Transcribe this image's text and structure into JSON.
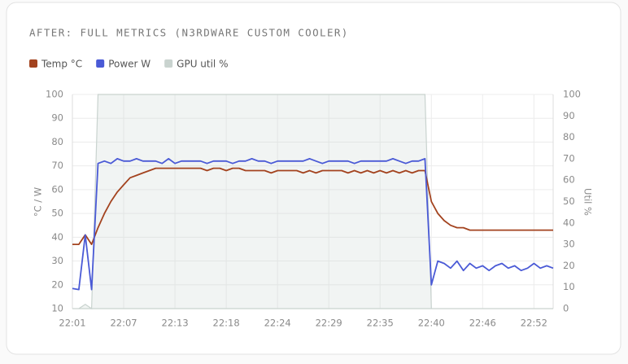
{
  "chart_data": {
    "type": "line",
    "title": "AFTER: FULL METRICS (N3RDWARE CUSTOM COOLER)",
    "y_label": "°C / W",
    "y2_label": "Util %",
    "categories": [
      "22:01",
      null,
      null,
      null,
      null,
      null,
      null,
      null,
      "22:07",
      null,
      null,
      null,
      null,
      null,
      null,
      null,
      "22:13",
      null,
      null,
      null,
      null,
      null,
      null,
      null,
      "22:18",
      null,
      null,
      null,
      null,
      null,
      null,
      null,
      "22:24",
      null,
      null,
      null,
      null,
      null,
      null,
      null,
      "22:29",
      null,
      null,
      null,
      null,
      null,
      null,
      null,
      "22:35",
      null,
      null,
      null,
      null,
      null,
      null,
      null,
      "22:40",
      null,
      null,
      null,
      null,
      null,
      null,
      null,
      "22:46",
      null,
      null,
      null,
      null,
      null,
      null,
      null,
      "22:52",
      null,
      null,
      null
    ],
    "series": [
      {
        "name": "Temp °C",
        "color": "#a3431f",
        "values": [
          37,
          37,
          41,
          37,
          44,
          50,
          55,
          59,
          62,
          65,
          66,
          67,
          68,
          69,
          69,
          69,
          69,
          69,
          69,
          69,
          69,
          68,
          69,
          69,
          68,
          69,
          69,
          68,
          68,
          68,
          68,
          67,
          68,
          68,
          68,
          68,
          67,
          68,
          67,
          68,
          68,
          68,
          68,
          67,
          68,
          67,
          68,
          67,
          68,
          67,
          68,
          67,
          68,
          67,
          68,
          68,
          55,
          50,
          47,
          45,
          44,
          44,
          43,
          43,
          43,
          43,
          43,
          43,
          43,
          43,
          43,
          43,
          43,
          43,
          43,
          43
        ]
      },
      {
        "name": "Power W",
        "color": "#4a5ad6",
        "values": [
          18.5,
          18,
          41,
          18,
          71,
          72,
          71,
          73,
          72,
          72,
          73,
          72,
          72,
          72,
          71,
          73,
          71,
          72,
          72,
          72,
          72,
          71,
          72,
          72,
          72,
          71,
          72,
          72,
          73,
          72,
          72,
          71,
          72,
          72,
          72,
          72,
          72,
          73,
          72,
          71,
          72,
          72,
          72,
          72,
          71,
          72,
          72,
          72,
          72,
          72,
          73,
          72,
          71,
          72,
          72,
          73,
          20,
          30,
          29,
          27,
          30,
          26,
          29,
          27,
          28,
          26,
          28,
          29,
          27,
          28,
          26,
          27,
          29,
          27,
          28,
          27
        ]
      },
      {
        "name": "GPU util %",
        "color": "#c9d3cf",
        "axis": "y2",
        "fill": true,
        "values": [
          0,
          0,
          2,
          0,
          100,
          100,
          100,
          100,
          100,
          100,
          100,
          100,
          100,
          100,
          100,
          100,
          100,
          100,
          100,
          100,
          100,
          100,
          100,
          100,
          100,
          100,
          100,
          100,
          100,
          100,
          100,
          100,
          100,
          100,
          100,
          100,
          100,
          100,
          100,
          100,
          100,
          100,
          100,
          100,
          100,
          100,
          100,
          100,
          100,
          100,
          100,
          100,
          100,
          100,
          100,
          100,
          0,
          0,
          0,
          0,
          0,
          0,
          0,
          0,
          0,
          0,
          0,
          0,
          0,
          0,
          0,
          0,
          0,
          0,
          0,
          0
        ]
      }
    ],
    "ylim": [
      10,
      100
    ],
    "yticks": [
      10,
      20,
      30,
      40,
      50,
      60,
      70,
      80,
      90,
      100
    ],
    "y2lim": [
      0,
      100
    ],
    "y2ticks": [
      0,
      10,
      20,
      30,
      40,
      50,
      60,
      70,
      80,
      90,
      100
    ],
    "grid": true
  }
}
